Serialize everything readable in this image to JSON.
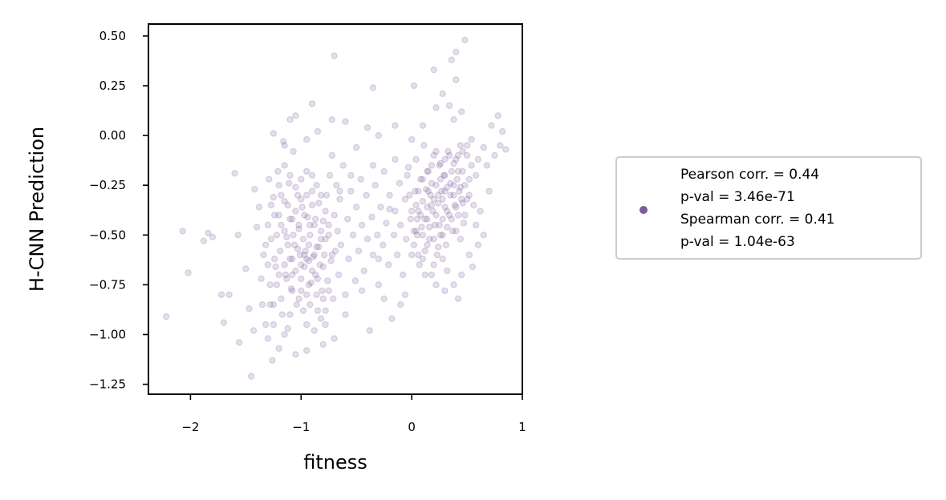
{
  "chart_data": {
    "type": "scatter",
    "xlabel": "fitness",
    "ylabel": "H-CNN Prediction",
    "xlim": [
      -2.38,
      1.0
    ],
    "ylim": [
      -1.3,
      0.56
    ],
    "x_ticks": [
      -2,
      -1,
      0,
      1
    ],
    "x_tick_labels": [
      "−2",
      "−1",
      "0",
      "1"
    ],
    "y_ticks": [
      0.5,
      0.25,
      0.0,
      -0.25,
      -0.5,
      -0.75,
      -1.0,
      -1.25
    ],
    "y_tick_labels": [
      "0.50",
      "0.25",
      "0.00",
      "−0.25",
      "−0.50",
      "−0.75",
      "−1.00",
      "−1.25"
    ],
    "grid": false,
    "marker_color": "#7b5c9c",
    "marker_alpha": 0.2,
    "legend": {
      "placement": "right",
      "lines": [
        "Pearson corr. = 0.44",
        "p-val = 3.46e-71",
        "Spearman corr. = 0.41",
        "p-val = 1.04e-63"
      ]
    },
    "points": [
      [
        -2.22,
        -0.91
      ],
      [
        -2.07,
        -0.48
      ],
      [
        -2.02,
        -0.69
      ],
      [
        -1.88,
        -0.53
      ],
      [
        -1.84,
        -0.49
      ],
      [
        -1.8,
        -0.51
      ],
      [
        -1.72,
        -0.8
      ],
      [
        -1.7,
        -0.94
      ],
      [
        -1.65,
        -0.8
      ],
      [
        -1.6,
        -0.19
      ],
      [
        -1.57,
        -0.5
      ],
      [
        -1.56,
        -1.04
      ],
      [
        -1.5,
        -0.67
      ],
      [
        -1.47,
        -0.87
      ],
      [
        -1.45,
        -1.21
      ],
      [
        -1.43,
        -0.98
      ],
      [
        -1.42,
        -0.27
      ],
      [
        -1.4,
        -0.46
      ],
      [
        -1.38,
        -0.36
      ],
      [
        -1.36,
        -0.72
      ],
      [
        -1.34,
        -0.6
      ],
      [
        -1.32,
        -0.95
      ],
      [
        -1.3,
        -1.02
      ],
      [
        -1.29,
        -0.22
      ],
      [
        -1.28,
        -0.85
      ],
      [
        -1.27,
        -0.52
      ],
      [
        -1.26,
        -1.13
      ],
      [
        -1.25,
        -0.31
      ],
      [
        -1.24,
        -0.4
      ],
      [
        -1.23,
        -0.66
      ],
      [
        -1.22,
        -0.75
      ],
      [
        -1.21,
        -0.18
      ],
      [
        -1.2,
        -1.07
      ],
      [
        -1.19,
        -0.58
      ],
      [
        -1.18,
        -0.45
      ],
      [
        -1.17,
        -0.9
      ],
      [
        -1.16,
        -0.03
      ],
      [
        -1.15,
        -0.33
      ],
      [
        -1.14,
        -0.7
      ],
      [
        -1.13,
        -0.51
      ],
      [
        -1.12,
        -0.97
      ],
      [
        -1.11,
        -0.24
      ],
      [
        -1.1,
        -0.62
      ],
      [
        -1.09,
        -0.77
      ],
      [
        -1.08,
        -0.42
      ],
      [
        -1.07,
        -0.08
      ],
      [
        -1.06,
        -0.55
      ],
      [
        -1.05,
        -0.68
      ],
      [
        -1.04,
        -0.85
      ],
      [
        -1.03,
        -0.3
      ],
      [
        -1.02,
        -0.47
      ],
      [
        -1.01,
        -0.6
      ],
      [
        -1.0,
        -0.72
      ],
      [
        -0.99,
        -0.36
      ],
      [
        -0.98,
        -0.52
      ],
      [
        -0.97,
        -0.66
      ],
      [
        -0.96,
        -0.58
      ],
      [
        -0.95,
        -0.8
      ],
      [
        -0.94,
        -0.41
      ],
      [
        -0.93,
        -0.63
      ],
      [
        -0.92,
        -0.5
      ],
      [
        -0.91,
        -0.74
      ],
      [
        -0.9,
        -0.28
      ],
      [
        -0.89,
        -0.61
      ],
      [
        -0.88,
        -0.45
      ],
      [
        -0.87,
        -0.7
      ],
      [
        -0.86,
        -0.56
      ],
      [
        -0.85,
        -0.88
      ],
      [
        -0.84,
        -0.34
      ],
      [
        -0.83,
        -0.65
      ],
      [
        -0.82,
        -0.52
      ],
      [
        -0.81,
        -0.78
      ],
      [
        -0.8,
        -0.43
      ],
      [
        -0.79,
        -0.6
      ],
      [
        -0.78,
        -0.95
      ],
      [
        -0.77,
        -0.3
      ],
      [
        -0.76,
        -0.73
      ],
      [
        -0.75,
        -0.5
      ],
      [
        -0.74,
        -0.2
      ],
      [
        -0.73,
        -0.63
      ],
      [
        -0.72,
        -0.1
      ],
      [
        -0.71,
        -0.82
      ],
      [
        -0.7,
        -0.4
      ],
      [
        -0.69,
        -0.58
      ],
      [
        -0.68,
        -0.25
      ],
      [
        -0.67,
        -0.48
      ],
      [
        -0.66,
        -0.7
      ],
      [
        -0.65,
        -0.32
      ],
      [
        -0.64,
        -0.55
      ],
      [
        -0.62,
        -0.15
      ],
      [
        -0.6,
        -0.8
      ],
      [
        -0.58,
        -0.42
      ],
      [
        -0.57,
        -0.62
      ],
      [
        -0.55,
        -0.28
      ],
      [
        -0.53,
        -0.5
      ],
      [
        -0.51,
        -0.73
      ],
      [
        -0.5,
        -0.36
      ],
      [
        -0.48,
        -0.58
      ],
      [
        -0.46,
        -0.22
      ],
      [
        -0.45,
        -0.45
      ],
      [
        -0.43,
        -0.68
      ],
      [
        -0.41,
        -0.3
      ],
      [
        -0.4,
        -0.52
      ],
      [
        -0.38,
        -0.98
      ],
      [
        -0.36,
        -0.41
      ],
      [
        -0.35,
        -0.6
      ],
      [
        -0.33,
        -0.25
      ],
      [
        -0.31,
        -0.5
      ],
      [
        -0.3,
        -0.75
      ],
      [
        -0.28,
        -0.36
      ],
      [
        -0.26,
        -0.55
      ],
      [
        -0.25,
        -0.18
      ],
      [
        -0.23,
        -0.44
      ],
      [
        -0.21,
        -0.65
      ],
      [
        -0.2,
        -0.3
      ],
      [
        -0.18,
        -0.92
      ],
      [
        -0.16,
        -0.5
      ],
      [
        -0.15,
        -0.38
      ],
      [
        -0.13,
        -0.6
      ],
      [
        -0.11,
        -0.24
      ],
      [
        -0.1,
        -0.45
      ],
      [
        -0.08,
        -0.7
      ],
      [
        -0.06,
        -0.32
      ],
      [
        -0.05,
        -0.52
      ],
      [
        -0.03,
        -0.16
      ],
      [
        -0.01,
        -0.42
      ],
      [
        0.0,
        -0.6
      ],
      [
        0.02,
        -0.48
      ],
      [
        0.03,
        -0.28
      ],
      [
        0.04,
        -0.12
      ],
      [
        0.05,
        -0.5
      ],
      [
        0.06,
        -0.38
      ],
      [
        0.07,
        -0.65
      ],
      [
        0.08,
        -0.22
      ],
      [
        0.09,
        -0.46
      ],
      [
        0.1,
        -0.33
      ],
      [
        0.11,
        -0.05
      ],
      [
        0.12,
        -0.58
      ],
      [
        0.13,
        -0.27
      ],
      [
        0.14,
        -0.42
      ],
      [
        0.15,
        -0.18
      ],
      [
        0.16,
        -0.52
      ],
      [
        0.17,
        -0.3
      ],
      [
        0.18,
        -0.7
      ],
      [
        0.19,
        -0.38
      ],
      [
        0.2,
        -0.1
      ],
      [
        0.21,
        -0.45
      ],
      [
        0.22,
        -0.25
      ],
      [
        0.23,
        -0.6
      ],
      [
        0.24,
        -0.34
      ],
      [
        0.25,
        -0.15
      ],
      [
        0.26,
        -0.5
      ],
      [
        0.27,
        -0.28
      ],
      [
        0.28,
        -0.42
      ],
      [
        0.29,
        -0.2
      ],
      [
        0.3,
        -0.36
      ],
      [
        0.31,
        -0.55
      ],
      [
        0.32,
        -0.26
      ],
      [
        0.33,
        -0.08
      ],
      [
        0.34,
        -0.4
      ],
      [
        0.35,
        -0.3
      ],
      [
        0.36,
        -0.18
      ],
      [
        0.37,
        -0.48
      ],
      [
        0.38,
        -0.25
      ],
      [
        0.39,
        -0.35
      ],
      [
        0.4,
        -0.12
      ],
      [
        0.41,
        -0.22
      ],
      [
        0.42,
        -0.4
      ],
      [
        0.43,
        -0.28
      ],
      [
        0.44,
        -0.05
      ],
      [
        0.45,
        -0.32
      ],
      [
        0.46,
        -0.18
      ],
      [
        0.47,
        -0.44
      ],
      [
        0.48,
        -0.25
      ],
      [
        0.5,
        -0.1
      ],
      [
        0.52,
        -0.3
      ],
      [
        0.54,
        -0.02
      ],
      [
        0.56,
        -0.35
      ],
      [
        0.58,
        -0.2
      ],
      [
        0.6,
        -0.12
      ],
      [
        0.62,
        -0.38
      ],
      [
        0.65,
        -0.06
      ],
      [
        0.68,
        -0.15
      ],
      [
        0.7,
        -0.28
      ],
      [
        0.72,
        0.05
      ],
      [
        0.75,
        -0.1
      ],
      [
        0.78,
        0.1
      ],
      [
        0.8,
        -0.05
      ],
      [
        0.82,
        0.02
      ],
      [
        0.85,
        -0.07
      ],
      [
        0.48,
        0.48
      ],
      [
        0.4,
        0.42
      ],
      [
        0.36,
        0.38
      ],
      [
        0.4,
        0.28
      ],
      [
        0.2,
        0.33
      ],
      [
        0.28,
        0.21
      ],
      [
        0.34,
        0.15
      ],
      [
        0.45,
        0.12
      ],
      [
        0.22,
        0.14
      ],
      [
        0.38,
        0.08
      ],
      [
        0.02,
        0.25
      ],
      [
        -0.35,
        0.24
      ],
      [
        -0.7,
        0.4
      ],
      [
        -0.9,
        0.16
      ],
      [
        -1.05,
        0.1
      ],
      [
        -1.1,
        0.08
      ],
      [
        -0.72,
        0.08
      ],
      [
        -0.6,
        0.07
      ],
      [
        -0.4,
        0.04
      ],
      [
        -0.15,
        0.05
      ],
      [
        -0.3,
        0.0
      ],
      [
        -1.25,
        0.01
      ],
      [
        -1.15,
        -0.05
      ],
      [
        -0.95,
        -0.02
      ],
      [
        -0.85,
        0.02
      ],
      [
        -0.5,
        -0.06
      ],
      [
        0.1,
        0.05
      ],
      [
        0.0,
        -0.02
      ],
      [
        -0.35,
        -0.15
      ],
      [
        -0.15,
        -0.12
      ],
      [
        -0.55,
        -0.2
      ],
      [
        -0.65,
        -0.28
      ],
      [
        -0.2,
        -0.37
      ],
      [
        0.05,
        -0.42
      ],
      [
        -0.06,
        -0.8
      ],
      [
        -0.1,
        -0.85
      ],
      [
        0.22,
        -0.75
      ],
      [
        0.3,
        -0.78
      ],
      [
        0.42,
        -0.82
      ],
      [
        0.12,
        -0.7
      ],
      [
        0.2,
        -0.65
      ],
      [
        0.55,
        -0.66
      ],
      [
        0.6,
        -0.55
      ],
      [
        0.65,
        -0.5
      ],
      [
        0.58,
        -0.45
      ],
      [
        0.52,
        -0.6
      ],
      [
        0.45,
        -0.7
      ],
      [
        0.38,
        -0.75
      ],
      [
        0.32,
        -0.68
      ],
      [
        0.28,
        -0.62
      ],
      [
        -0.25,
        -0.82
      ],
      [
        -0.3,
        -0.62
      ],
      [
        -0.45,
        -0.78
      ],
      [
        -0.6,
        -0.9
      ],
      [
        -0.7,
        -1.02
      ],
      [
        -0.8,
        -1.05
      ],
      [
        -0.95,
        -1.08
      ],
      [
        -1.05,
        -1.1
      ],
      [
        -1.15,
        -1.0
      ],
      [
        -1.25,
        -0.95
      ],
      [
        -1.35,
        -0.85
      ],
      [
        -1.1,
        -0.9
      ],
      [
        -0.95,
        -0.95
      ],
      [
        -0.88,
        -0.98
      ],
      [
        -0.82,
        -0.92
      ],
      [
        -0.78,
        -0.88
      ],
      [
        -1.02,
        -0.82
      ],
      [
        -0.92,
        -0.85
      ],
      [
        -1.08,
        -0.78
      ],
      [
        -0.98,
        -0.88
      ],
      [
        -1.18,
        -0.82
      ],
      [
        -1.13,
        -0.72
      ],
      [
        -1.0,
        -0.65
      ],
      [
        -0.95,
        -0.62
      ],
      [
        -0.9,
        -0.68
      ],
      [
        -0.85,
        -0.72
      ],
      [
        -0.8,
        -0.66
      ],
      [
        -0.88,
        -0.6
      ],
      [
        -0.93,
        -0.55
      ],
      [
        -0.97,
        -0.6
      ],
      [
        -1.03,
        -0.57
      ],
      [
        -1.08,
        -0.62
      ],
      [
        -1.12,
        -0.55
      ],
      [
        -1.15,
        -0.48
      ],
      [
        -1.1,
        -0.42
      ],
      [
        -1.05,
        -0.38
      ],
      [
        -1.0,
        -0.32
      ],
      [
        -0.95,
        -0.3
      ],
      [
        -0.9,
        -0.35
      ],
      [
        -0.87,
        -0.42
      ],
      [
        -0.82,
        -0.48
      ],
      [
        -0.78,
        -0.52
      ],
      [
        -0.84,
        -0.56
      ],
      [
        -0.92,
        -0.45
      ],
      [
        -0.97,
        -0.4
      ],
      [
        -1.02,
        -0.45
      ],
      [
        -1.07,
        -0.5
      ],
      [
        -1.12,
        -0.35
      ],
      [
        -1.18,
        -0.3
      ],
      [
        -1.2,
        -0.4
      ],
      [
        -1.22,
        -0.5
      ],
      [
        -1.24,
        -0.62
      ],
      [
        -1.2,
        -0.7
      ],
      [
        -1.15,
        -0.65
      ],
      [
        -1.08,
        -0.7
      ],
      [
        -1.0,
        -0.78
      ],
      [
        -0.93,
        -0.75
      ],
      [
        -0.86,
        -0.8
      ],
      [
        -0.8,
        -0.82
      ],
      [
        -0.75,
        -0.78
      ],
      [
        -0.72,
        -0.6
      ],
      [
        -0.75,
        -0.45
      ],
      [
        -0.78,
        -0.38
      ],
      [
        -0.82,
        -0.3
      ],
      [
        -0.86,
        -0.25
      ],
      [
        -0.9,
        -0.2
      ],
      [
        -0.95,
        -0.18
      ],
      [
        -1.0,
        -0.22
      ],
      [
        -1.05,
        -0.26
      ],
      [
        -1.1,
        -0.2
      ],
      [
        -1.15,
        -0.15
      ],
      [
        -1.2,
        -0.25
      ],
      [
        -1.27,
        -0.35
      ],
      [
        -1.3,
        -0.45
      ],
      [
        -1.32,
        -0.55
      ],
      [
        -1.3,
        -0.65
      ],
      [
        -1.28,
        -0.75
      ],
      [
        -1.25,
        -0.85
      ],
      [
        0.15,
        -0.28
      ],
      [
        0.18,
        -0.35
      ],
      [
        0.22,
        -0.4
      ],
      [
        0.25,
        -0.45
      ],
      [
        0.28,
        -0.32
      ],
      [
        0.3,
        -0.28
      ],
      [
        0.32,
        -0.38
      ],
      [
        0.35,
        -0.24
      ],
      [
        0.38,
        -0.3
      ],
      [
        0.4,
        -0.36
      ],
      [
        0.42,
        -0.18
      ],
      [
        0.44,
        -0.26
      ],
      [
        0.46,
        -0.34
      ],
      [
        0.3,
        -0.2
      ],
      [
        0.26,
        -0.22
      ],
      [
        0.24,
        -0.3
      ],
      [
        0.2,
        -0.32
      ],
      [
        0.18,
        -0.24
      ],
      [
        0.14,
        -0.36
      ],
      [
        0.12,
        -0.42
      ],
      [
        0.1,
        -0.5
      ],
      [
        0.16,
        -0.46
      ],
      [
        0.2,
        -0.52
      ],
      [
        0.24,
        -0.56
      ],
      [
        0.28,
        -0.5
      ],
      [
        0.32,
        -0.46
      ],
      [
        0.36,
        -0.42
      ],
      [
        0.4,
        -0.48
      ],
      [
        0.44,
        -0.52
      ],
      [
        0.48,
        -0.4
      ],
      [
        0.5,
        -0.32
      ],
      [
        0.52,
        -0.22
      ],
      [
        0.54,
        -0.15
      ],
      [
        0.5,
        -0.05
      ],
      [
        0.46,
        -0.08
      ],
      [
        0.42,
        -0.1
      ],
      [
        0.38,
        -0.14
      ],
      [
        0.34,
        -0.1
      ],
      [
        0.3,
        -0.12
      ],
      [
        0.26,
        -0.14
      ],
      [
        0.22,
        -0.08
      ],
      [
        0.18,
        -0.15
      ],
      [
        0.14,
        -0.18
      ],
      [
        0.1,
        -0.22
      ],
      [
        0.06,
        -0.28
      ],
      [
        0.04,
        -0.35
      ],
      [
        0.08,
        -0.4
      ],
      [
        0.02,
        -0.55
      ],
      [
        0.0,
        -0.38
      ],
      [
        -0.02,
        -0.3
      ],
      [
        -0.04,
        -0.2
      ],
      [
        0.06,
        -0.6
      ],
      [
        0.1,
        -0.62
      ],
      [
        0.14,
        -0.55
      ],
      [
        0.04,
        -0.48
      ]
    ]
  }
}
